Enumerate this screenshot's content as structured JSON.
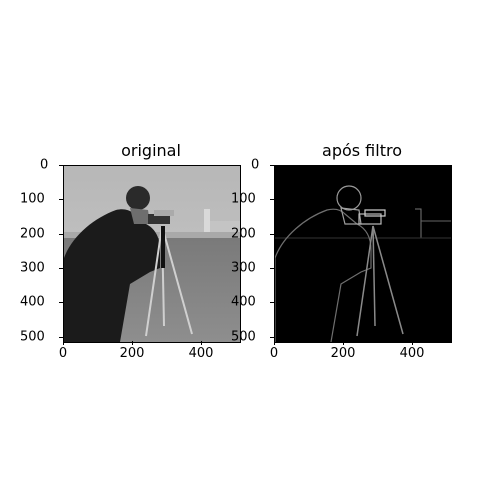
{
  "panels": [
    {
      "title": "original",
      "y_ticks": [
        "0",
        "100",
        "200",
        "300",
        "400",
        "500"
      ],
      "x_ticks": [
        "0",
        "200",
        "400"
      ],
      "image": "camera-photo-grayscale"
    },
    {
      "title": "após filtro",
      "y_ticks": [
        "0",
        "100",
        "200",
        "300",
        "400",
        "500"
      ],
      "x_ticks": [
        "0",
        "200",
        "400"
      ],
      "image": "camera-photo-edge-filtered"
    }
  ]
}
